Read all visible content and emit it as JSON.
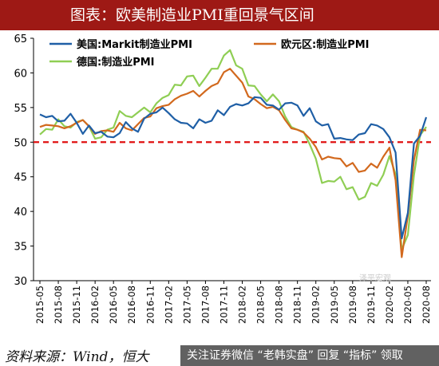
{
  "title": "图表：欧美制造业PMI重回景气区间",
  "source": "资料来源：Wind，恒大",
  "overlay_text": "关注证券微信 “老韩实盘” 回复 “指标” 领取",
  "watermark": "泽平宏观",
  "colors": {
    "title_bg": "#9e1915",
    "us": "#1f5fa6",
    "eu": "#d2691e",
    "de": "#8fce54",
    "ref_line": "#e01010"
  },
  "chart_data": {
    "type": "line",
    "ylim": [
      30,
      65
    ],
    "yticks": [
      30,
      35,
      40,
      45,
      50,
      55,
      60,
      65
    ],
    "reference_line": 50,
    "legend_position": "top",
    "x": [
      "2015-05",
      "2015-06",
      "2015-07",
      "2015-08",
      "2015-09",
      "2015-10",
      "2015-11",
      "2015-12",
      "2016-01",
      "2016-02",
      "2016-03",
      "2016-04",
      "2016-05",
      "2016-06",
      "2016-07",
      "2016-08",
      "2016-09",
      "2016-10",
      "2016-11",
      "2016-12",
      "2017-01",
      "2017-02",
      "2017-03",
      "2017-04",
      "2017-05",
      "2017-06",
      "2017-07",
      "2017-08",
      "2017-09",
      "2017-10",
      "2017-11",
      "2017-12",
      "2018-01",
      "2018-02",
      "2018-03",
      "2018-04",
      "2018-05",
      "2018-06",
      "2018-07",
      "2018-08",
      "2018-09",
      "2018-10",
      "2018-11",
      "2018-12",
      "2019-01",
      "2019-02",
      "2019-03",
      "2019-04",
      "2019-05",
      "2019-06",
      "2019-07",
      "2019-08",
      "2019-09",
      "2019-10",
      "2019-11",
      "2019-12",
      "2020-01",
      "2020-02",
      "2020-03",
      "2020-04",
      "2020-05",
      "2020-06",
      "2020-07",
      "2020-08"
    ],
    "xtick_labels": [
      "2015-05",
      "2015-08",
      "2015-11",
      "2016-02",
      "2016-05",
      "2016-08",
      "2016-11",
      "2017-02",
      "2017-05",
      "2017-08",
      "2017-11",
      "2018-02",
      "2018-05",
      "2018-08",
      "2018-11",
      "2019-02",
      "2019-05",
      "2019-08",
      "2019-11",
      "2020-02",
      "2020-05",
      "2020-08"
    ],
    "series": [
      {
        "name": "美国:Markit制造业PMI",
        "color": "#1f5fa6",
        "values": [
          54.0,
          53.6,
          53.8,
          53.0,
          53.1,
          54.1,
          52.8,
          51.2,
          52.4,
          51.3,
          51.5,
          50.8,
          50.7,
          51.3,
          52.9,
          52.0,
          51.5,
          53.4,
          54.1,
          54.3,
          55.0,
          54.2,
          53.3,
          52.8,
          52.7,
          52.0,
          53.3,
          52.8,
          53.1,
          54.6,
          53.9,
          55.1,
          55.5,
          55.3,
          55.6,
          56.5,
          56.4,
          55.4,
          55.3,
          54.7,
          55.6,
          55.7,
          55.3,
          53.8,
          54.9,
          53.0,
          52.4,
          52.6,
          50.5,
          50.6,
          50.4,
          50.3,
          51.1,
          51.3,
          52.6,
          52.4,
          51.9,
          50.7,
          48.5,
          36.1,
          39.8,
          49.8,
          50.9,
          53.6
        ]
      },
      {
        "name": "欧元区:制造业PMI",
        "color": "#d2691e",
        "values": [
          52.2,
          52.5,
          52.4,
          52.3,
          52.0,
          52.3,
          52.8,
          53.2,
          52.3,
          51.2,
          51.6,
          51.7,
          51.5,
          52.8,
          52.0,
          51.7,
          52.6,
          53.5,
          53.7,
          54.9,
          55.2,
          55.4,
          56.2,
          56.7,
          57.0,
          57.4,
          56.6,
          57.4,
          58.1,
          58.5,
          60.1,
          60.6,
          59.6,
          58.6,
          56.6,
          56.2,
          55.5,
          54.9,
          55.1,
          54.6,
          53.2,
          52.0,
          51.8,
          51.4,
          50.5,
          49.3,
          47.5,
          47.9,
          47.7,
          47.6,
          46.5,
          47.0,
          45.7,
          45.9,
          46.9,
          46.3,
          47.9,
          49.2,
          44.5,
          33.4,
          39.4,
          47.4,
          51.8,
          51.7
        ]
      },
      {
        "name": "德国:制造业PMI",
        "color": "#8fce54",
        "values": [
          51.1,
          51.9,
          51.8,
          53.3,
          52.3,
          52.1,
          52.9,
          53.2,
          52.3,
          50.5,
          50.7,
          51.8,
          52.1,
          54.5,
          53.8,
          53.6,
          54.3,
          55.0,
          54.3,
          55.6,
          56.4,
          56.8,
          58.3,
          58.2,
          59.5,
          59.6,
          58.1,
          59.3,
          60.6,
          60.6,
          62.5,
          63.3,
          61.1,
          60.6,
          58.2,
          58.1,
          56.9,
          55.9,
          56.9,
          55.9,
          53.7,
          52.2,
          51.8,
          51.5,
          49.7,
          47.6,
          44.1,
          44.4,
          44.3,
          45.0,
          43.2,
          43.5,
          41.7,
          42.1,
          44.1,
          43.7,
          45.3,
          48.0,
          45.4,
          34.5,
          36.6,
          45.2,
          51.0,
          52.2
        ]
      }
    ]
  }
}
